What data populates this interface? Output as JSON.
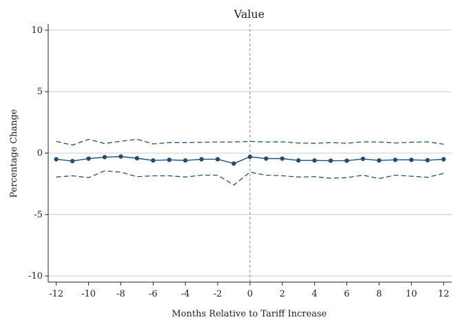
{
  "chart_data": {
    "type": "line",
    "title": "Value",
    "xlabel": "Months Relative to Tariff Increase",
    "ylabel": "Percentage Change",
    "xlim": [
      -12.5,
      12.5
    ],
    "ylim": [
      -10.5,
      10.5
    ],
    "xticks": [
      -12,
      -10,
      -8,
      -6,
      -4,
      -2,
      0,
      2,
      4,
      6,
      8,
      10,
      12
    ],
    "yticks": [
      10,
      5,
      0,
      -5,
      -10
    ],
    "grid": "horizontal",
    "reference_line_x": 0,
    "colors": {
      "series": "#1f4e79",
      "grid": "#cccccc",
      "reference": "#999999",
      "axis": "#222222"
    },
    "x": [
      -12,
      -11,
      -10,
      -9,
      -8,
      -7,
      -6,
      -5,
      -4,
      -3,
      -2,
      -1,
      0,
      1,
      2,
      3,
      4,
      5,
      6,
      7,
      8,
      9,
      10,
      11,
      12
    ],
    "series": [
      {
        "role": "estimate",
        "values": [
          -0.5,
          -0.65,
          -0.45,
          -0.33,
          -0.28,
          -0.42,
          -0.6,
          -0.55,
          -0.6,
          -0.5,
          -0.5,
          -0.85,
          -0.3,
          -0.45,
          -0.45,
          -0.6,
          -0.6,
          -0.62,
          -0.62,
          -0.47,
          -0.6,
          -0.55,
          -0.55,
          -0.58,
          -0.5
        ]
      },
      {
        "role": "upper_ci",
        "values": [
          0.95,
          0.65,
          1.12,
          0.78,
          0.97,
          1.12,
          0.75,
          0.85,
          0.85,
          0.88,
          0.9,
          0.9,
          0.95,
          0.9,
          0.92,
          0.82,
          0.8,
          0.85,
          0.8,
          0.92,
          0.9,
          0.82,
          0.88,
          0.92,
          0.72
        ]
      },
      {
        "role": "lower_ci",
        "values": [
          -1.95,
          -1.85,
          -2.0,
          -1.45,
          -1.55,
          -1.92,
          -1.85,
          -1.85,
          -1.95,
          -1.8,
          -1.8,
          -2.6,
          -1.55,
          -1.8,
          -1.85,
          -1.95,
          -1.92,
          -2.05,
          -2.0,
          -1.8,
          -2.08,
          -1.8,
          -1.88,
          -1.97,
          -1.65
        ]
      }
    ]
  }
}
